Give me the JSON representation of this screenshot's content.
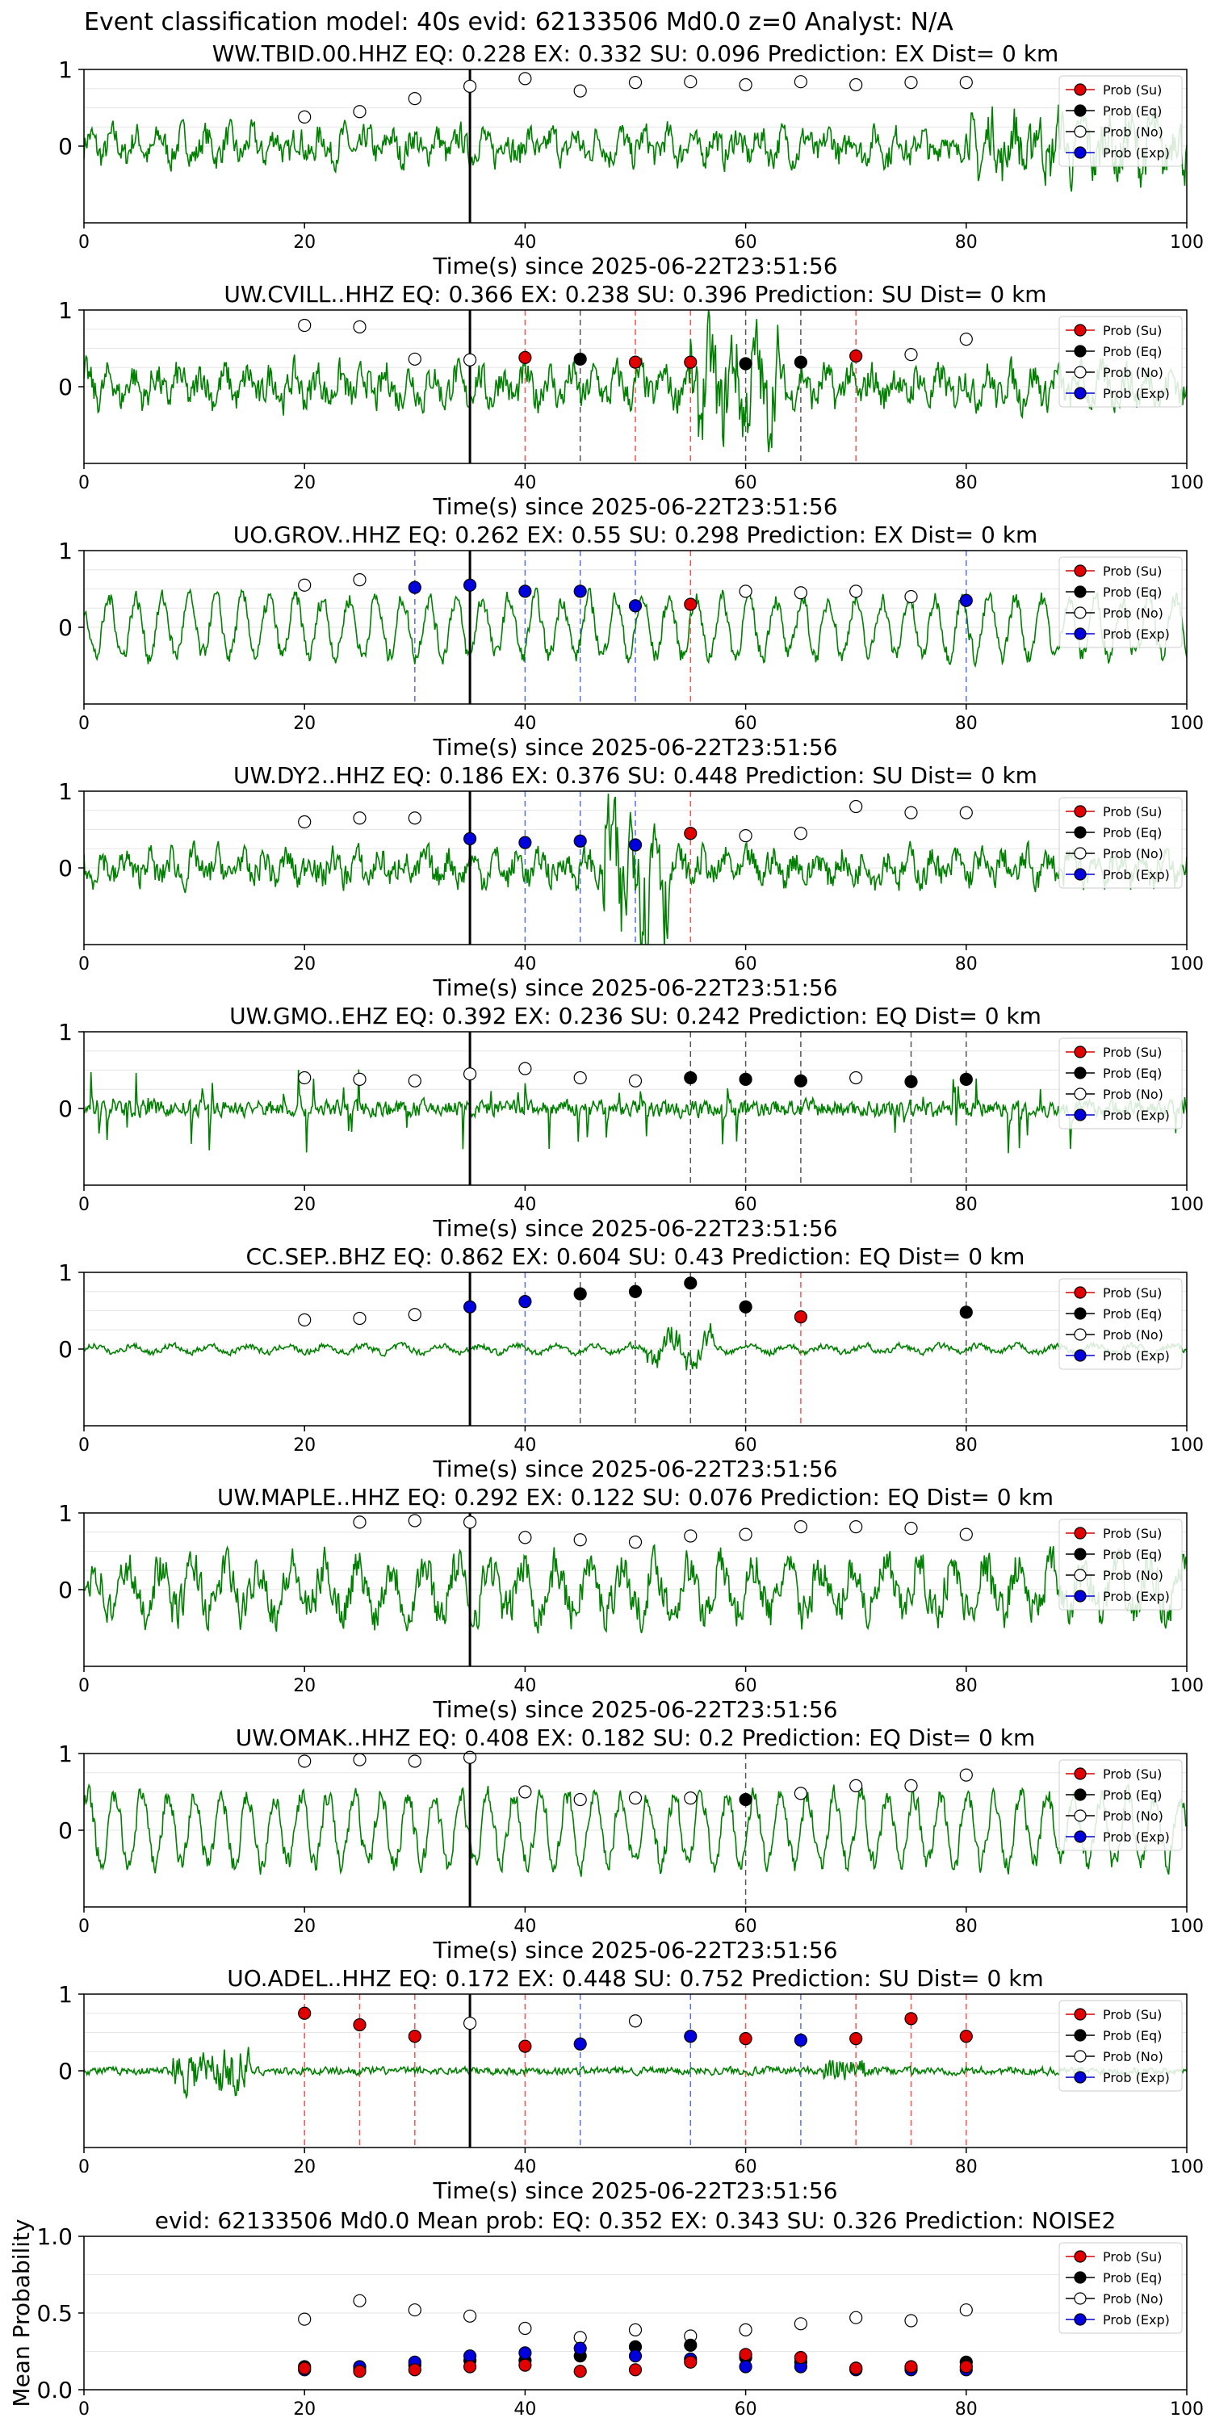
{
  "suptitle": "Event classification model: 40s evid: 62133506 Md0.0 z=0 Analyst: N/A",
  "legend_labels": [
    "Prob (Su)",
    "Prob (Eq)",
    "Prob (No)",
    "Prob (Exp)"
  ],
  "colors": {
    "su": "#e00000",
    "eq": "#000000",
    "no": "#ffffff",
    "exp": "#0000dd",
    "trace": "#008000",
    "su_line": "#ff5050",
    "eq_line": "#555555",
    "exp_line": "#5a6cf0"
  },
  "xlabel": "Time(s) since 2025-06-22T23:51:56",
  "x_ticks": [
    "0",
    "20",
    "40",
    "60",
    "80",
    "100"
  ],
  "y_ticks_station": [
    "1",
    "0"
  ],
  "chart_data": [
    {
      "type": "line",
      "title": "WW.TBID.00.HHZ   EQ: 0.228  EX: 0.332  SU: 0.096   Prediction: EX    Dist= 0 km",
      "xlim": [
        0,
        100
      ],
      "ylim": [
        -1,
        1
      ],
      "origin_x": 35,
      "trace": "highfreq",
      "amp": 0.35,
      "points": [
        {
          "x": 20,
          "y": 0.38,
          "c": "no"
        },
        {
          "x": 25,
          "y": 0.45,
          "c": "no"
        },
        {
          "x": 30,
          "y": 0.62,
          "c": "no"
        },
        {
          "x": 35,
          "y": 0.78,
          "c": "no"
        },
        {
          "x": 40,
          "y": 0.88,
          "c": "no"
        },
        {
          "x": 45,
          "y": 0.72,
          "c": "no"
        },
        {
          "x": 50,
          "y": 0.83,
          "c": "no"
        },
        {
          "x": 55,
          "y": 0.84,
          "c": "no"
        },
        {
          "x": 60,
          "y": 0.8,
          "c": "no"
        },
        {
          "x": 65,
          "y": 0.84,
          "c": "no"
        },
        {
          "x": 70,
          "y": 0.8,
          "c": "no"
        },
        {
          "x": 75,
          "y": 0.83,
          "c": "no"
        },
        {
          "x": 80,
          "y": 0.83,
          "c": "no"
        }
      ]
    },
    {
      "type": "line",
      "title": "UW.CVILL..HHZ   EQ: 0.366  EX: 0.238  SU: 0.396   Prediction: SU    Dist= 0 km",
      "xlim": [
        0,
        100
      ],
      "ylim": [
        -1,
        1
      ],
      "origin_x": 35,
      "trace": "highfreq",
      "amp": 0.4,
      "points": [
        {
          "x": 20,
          "y": 0.8,
          "c": "no"
        },
        {
          "x": 25,
          "y": 0.78,
          "c": "no"
        },
        {
          "x": 30,
          "y": 0.36,
          "c": "no"
        },
        {
          "x": 35,
          "y": 0.35,
          "c": "no"
        },
        {
          "x": 40,
          "y": 0.38,
          "c": "su"
        },
        {
          "x": 45,
          "y": 0.36,
          "c": "eq"
        },
        {
          "x": 50,
          "y": 0.32,
          "c": "su"
        },
        {
          "x": 55,
          "y": 0.32,
          "c": "su"
        },
        {
          "x": 60,
          "y": 0.3,
          "c": "eq"
        },
        {
          "x": 65,
          "y": 0.32,
          "c": "eq"
        },
        {
          "x": 70,
          "y": 0.4,
          "c": "su"
        },
        {
          "x": 75,
          "y": 0.42,
          "c": "no"
        },
        {
          "x": 80,
          "y": 0.62,
          "c": "no"
        }
      ]
    },
    {
      "type": "line",
      "title": "UO.GROV..HHZ   EQ: 0.262  EX: 0.55  SU: 0.298   Prediction: EX    Dist= 0 km",
      "xlim": [
        0,
        100
      ],
      "ylim": [
        -1,
        1
      ],
      "origin_x": 35,
      "trace": "lowfreq",
      "amp": 0.55,
      "points": [
        {
          "x": 20,
          "y": 0.55,
          "c": "no"
        },
        {
          "x": 25,
          "y": 0.62,
          "c": "no"
        },
        {
          "x": 30,
          "y": 0.52,
          "c": "exp"
        },
        {
          "x": 35,
          "y": 0.55,
          "c": "exp"
        },
        {
          "x": 40,
          "y": 0.47,
          "c": "exp"
        },
        {
          "x": 45,
          "y": 0.47,
          "c": "exp"
        },
        {
          "x": 50,
          "y": 0.28,
          "c": "exp"
        },
        {
          "x": 55,
          "y": 0.3,
          "c": "su"
        },
        {
          "x": 60,
          "y": 0.47,
          "c": "no"
        },
        {
          "x": 65,
          "y": 0.45,
          "c": "no"
        },
        {
          "x": 70,
          "y": 0.47,
          "c": "no"
        },
        {
          "x": 75,
          "y": 0.4,
          "c": "no"
        },
        {
          "x": 80,
          "y": 0.35,
          "c": "exp"
        }
      ]
    },
    {
      "type": "line",
      "title": "UW.DY2..HHZ   EQ: 0.186  EX: 0.376  SU: 0.448   Prediction: SU    Dist= 0 km",
      "xlim": [
        0,
        100
      ],
      "ylim": [
        -1,
        1
      ],
      "origin_x": 35,
      "trace": "highfreq",
      "amp": 0.35,
      "points": [
        {
          "x": 20,
          "y": 0.6,
          "c": "no"
        },
        {
          "x": 25,
          "y": 0.65,
          "c": "no"
        },
        {
          "x": 30,
          "y": 0.65,
          "c": "no"
        },
        {
          "x": 35,
          "y": 0.38,
          "c": "exp"
        },
        {
          "x": 40,
          "y": 0.33,
          "c": "exp"
        },
        {
          "x": 45,
          "y": 0.35,
          "c": "exp"
        },
        {
          "x": 50,
          "y": 0.3,
          "c": "exp"
        },
        {
          "x": 55,
          "y": 0.45,
          "c": "su"
        },
        {
          "x": 60,
          "y": 0.42,
          "c": "no"
        },
        {
          "x": 65,
          "y": 0.45,
          "c": "no"
        },
        {
          "x": 70,
          "y": 0.8,
          "c": "no"
        },
        {
          "x": 75,
          "y": 0.72,
          "c": "no"
        },
        {
          "x": 80,
          "y": 0.72,
          "c": "no"
        }
      ]
    },
    {
      "type": "line",
      "title": "UW.GMO..EHZ   EQ: 0.392  EX: 0.236  SU: 0.242   Prediction: EQ    Dist= 0 km",
      "xlim": [
        0,
        100
      ],
      "ylim": [
        -1,
        1
      ],
      "origin_x": 35,
      "trace": "spiky",
      "amp": 0.25,
      "points": [
        {
          "x": 20,
          "y": 0.4,
          "c": "no"
        },
        {
          "x": 25,
          "y": 0.38,
          "c": "no"
        },
        {
          "x": 30,
          "y": 0.36,
          "c": "no"
        },
        {
          "x": 35,
          "y": 0.45,
          "c": "no"
        },
        {
          "x": 40,
          "y": 0.52,
          "c": "no"
        },
        {
          "x": 45,
          "y": 0.4,
          "c": "no"
        },
        {
          "x": 50,
          "y": 0.36,
          "c": "no"
        },
        {
          "x": 55,
          "y": 0.4,
          "c": "eq"
        },
        {
          "x": 60,
          "y": 0.38,
          "c": "eq"
        },
        {
          "x": 65,
          "y": 0.36,
          "c": "eq"
        },
        {
          "x": 70,
          "y": 0.4,
          "c": "no"
        },
        {
          "x": 75,
          "y": 0.35,
          "c": "eq"
        },
        {
          "x": 80,
          "y": 0.38,
          "c": "eq"
        }
      ]
    },
    {
      "type": "line",
      "title": "CC.SEP..BHZ   EQ: 0.862  EX: 0.604  SU: 0.43   Prediction: EQ    Dist= 0 km",
      "xlim": [
        0,
        100
      ],
      "ylim": [
        -1,
        1
      ],
      "origin_x": 35,
      "trace": "quiet",
      "amp": 0.12,
      "points": [
        {
          "x": 20,
          "y": 0.38,
          "c": "no"
        },
        {
          "x": 25,
          "y": 0.4,
          "c": "no"
        },
        {
          "x": 30,
          "y": 0.45,
          "c": "no"
        },
        {
          "x": 35,
          "y": 0.55,
          "c": "exp"
        },
        {
          "x": 40,
          "y": 0.62,
          "c": "exp"
        },
        {
          "x": 45,
          "y": 0.72,
          "c": "eq"
        },
        {
          "x": 50,
          "y": 0.75,
          "c": "eq"
        },
        {
          "x": 55,
          "y": 0.86,
          "c": "eq"
        },
        {
          "x": 60,
          "y": 0.55,
          "c": "eq"
        },
        {
          "x": 65,
          "y": 0.42,
          "c": "su"
        },
        {
          "x": 80,
          "y": 0.48,
          "c": "eq"
        }
      ]
    },
    {
      "type": "line",
      "title": "UW.MAPLE..HHZ   EQ: 0.292  EX: 0.122  SU: 0.076   Prediction: EQ    Dist= 0 km",
      "xlim": [
        0,
        100
      ],
      "ylim": [
        -1,
        1
      ],
      "origin_x": 35,
      "trace": "mixed",
      "amp": 0.6,
      "points": [
        {
          "x": 25,
          "y": 0.88,
          "c": "no"
        },
        {
          "x": 30,
          "y": 0.9,
          "c": "no"
        },
        {
          "x": 35,
          "y": 0.88,
          "c": "no"
        },
        {
          "x": 40,
          "y": 0.68,
          "c": "no"
        },
        {
          "x": 45,
          "y": 0.65,
          "c": "no"
        },
        {
          "x": 50,
          "y": 0.62,
          "c": "no"
        },
        {
          "x": 55,
          "y": 0.7,
          "c": "no"
        },
        {
          "x": 60,
          "y": 0.72,
          "c": "no"
        },
        {
          "x": 65,
          "y": 0.82,
          "c": "no"
        },
        {
          "x": 70,
          "y": 0.82,
          "c": "no"
        },
        {
          "x": 75,
          "y": 0.8,
          "c": "no"
        },
        {
          "x": 80,
          "y": 0.72,
          "c": "no"
        }
      ]
    },
    {
      "type": "line",
      "title": "UW.OMAK..HHZ   EQ: 0.408  EX: 0.182  SU: 0.2   Prediction: EQ    Dist= 0 km",
      "xlim": [
        0,
        100
      ],
      "ylim": [
        -1,
        1
      ],
      "origin_x": 35,
      "trace": "lowfreq",
      "amp": 0.65,
      "points": [
        {
          "x": 20,
          "y": 0.9,
          "c": "no"
        },
        {
          "x": 25,
          "y": 0.92,
          "c": "no"
        },
        {
          "x": 30,
          "y": 0.9,
          "c": "no"
        },
        {
          "x": 35,
          "y": 0.95,
          "c": "no"
        },
        {
          "x": 40,
          "y": 0.5,
          "c": "no"
        },
        {
          "x": 45,
          "y": 0.4,
          "c": "no"
        },
        {
          "x": 50,
          "y": 0.42,
          "c": "no"
        },
        {
          "x": 55,
          "y": 0.42,
          "c": "no"
        },
        {
          "x": 60,
          "y": 0.4,
          "c": "eq"
        },
        {
          "x": 65,
          "y": 0.48,
          "c": "no"
        },
        {
          "x": 70,
          "y": 0.58,
          "c": "no"
        },
        {
          "x": 75,
          "y": 0.58,
          "c": "no"
        },
        {
          "x": 80,
          "y": 0.72,
          "c": "no"
        }
      ]
    },
    {
      "type": "line",
      "title": "UO.ADEL..HHZ   EQ: 0.172  EX: 0.448  SU: 0.752   Prediction: SU    Dist= 0 km",
      "xlim": [
        0,
        100
      ],
      "ylim": [
        -1,
        1
      ],
      "origin_x": 35,
      "trace": "burst",
      "amp": 0.1,
      "points": [
        {
          "x": 20,
          "y": 0.75,
          "c": "su"
        },
        {
          "x": 25,
          "y": 0.6,
          "c": "su"
        },
        {
          "x": 30,
          "y": 0.45,
          "c": "su"
        },
        {
          "x": 35,
          "y": 0.62,
          "c": "no"
        },
        {
          "x": 40,
          "y": 0.32,
          "c": "su"
        },
        {
          "x": 45,
          "y": 0.35,
          "c": "exp"
        },
        {
          "x": 50,
          "y": 0.65,
          "c": "no"
        },
        {
          "x": 55,
          "y": 0.45,
          "c": "exp"
        },
        {
          "x": 60,
          "y": 0.42,
          "c": "su"
        },
        {
          "x": 65,
          "y": 0.4,
          "c": "exp"
        },
        {
          "x": 70,
          "y": 0.42,
          "c": "su"
        },
        {
          "x": 75,
          "y": 0.68,
          "c": "su"
        },
        {
          "x": 80,
          "y": 0.45,
          "c": "su"
        }
      ]
    },
    {
      "type": "scatter",
      "title": "evid: 62133506  Md0.0   Mean prob:    EQ: 0.352  EX: 0.343  SU: 0.326   Prediction: NOISE2",
      "ylabel": "Mean Probability",
      "xlim": [
        0,
        100
      ],
      "ylim": [
        0,
        1
      ],
      "y_ticks": [
        "1.0",
        "0.5",
        "0.0"
      ],
      "x": [
        20,
        25,
        30,
        35,
        40,
        45,
        50,
        55,
        60,
        65,
        70,
        75,
        80
      ],
      "series": [
        {
          "c": "no",
          "values": [
            0.46,
            0.58,
            0.52,
            0.48,
            0.4,
            0.34,
            0.39,
            0.35,
            0.39,
            0.43,
            0.47,
            0.45,
            0.52
          ]
        },
        {
          "c": "eq",
          "values": [
            0.15,
            0.13,
            0.16,
            0.19,
            0.19,
            0.22,
            0.28,
            0.29,
            0.21,
            0.18,
            0.14,
            0.14,
            0.18
          ]
        },
        {
          "c": "exp",
          "values": [
            0.13,
            0.15,
            0.18,
            0.22,
            0.24,
            0.27,
            0.22,
            0.2,
            0.15,
            0.15,
            0.13,
            0.13,
            0.13
          ]
        },
        {
          "c": "su",
          "values": [
            0.14,
            0.12,
            0.13,
            0.15,
            0.16,
            0.12,
            0.13,
            0.18,
            0.23,
            0.21,
            0.14,
            0.15,
            0.15
          ]
        }
      ]
    }
  ]
}
